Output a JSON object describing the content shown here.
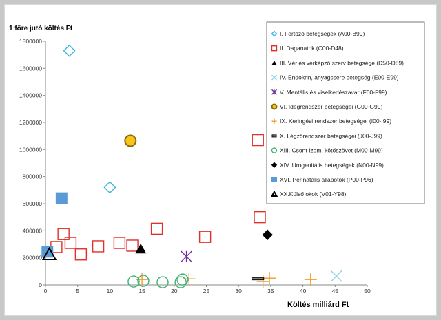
{
  "chart_data": {
    "type": "scatter",
    "ylabel": "1 főre jutó költés Ft",
    "xlabel": "Költés milliárd Ft",
    "xlim": [
      0,
      50
    ],
    "ylim": [
      0,
      1800000
    ],
    "xticks": [
      0,
      5,
      10,
      15,
      20,
      25,
      30,
      35,
      40,
      45,
      50
    ],
    "yticks": [
      0,
      200000,
      400000,
      600000,
      800000,
      1000000,
      1200000,
      1400000,
      1600000,
      1800000
    ],
    "grid": false,
    "legend_position": "top-right",
    "series": [
      {
        "name": "I. Fertőző betegségek (A00-B99)",
        "marker": "diamond-open",
        "color": "#3fb5e0",
        "points": [
          [
            3.7,
            1730000
          ],
          [
            10,
            720000
          ]
        ]
      },
      {
        "name": "II. Daganatok (C00-D48)",
        "marker": "square-open",
        "color": "#e0302a",
        "points": [
          [
            33,
            1070000
          ],
          [
            2.8,
            375000
          ],
          [
            3.9,
            310000
          ],
          [
            1.7,
            280000
          ],
          [
            5.5,
            225000
          ],
          [
            8.2,
            285000
          ],
          [
            11.5,
            310000
          ],
          [
            13.5,
            290000
          ],
          [
            17.3,
            415000
          ],
          [
            24.8,
            355000
          ],
          [
            33.3,
            500000
          ]
        ]
      },
      {
        "name": "III. Vér és vérképző szerv betegsége (D50-D89)",
        "marker": "triangle-filled",
        "color": "#000000",
        "points": [
          [
            14.8,
            265000
          ]
        ]
      },
      {
        "name": "IV. Endokrin, anyagcsere betegség (E00-E99)",
        "marker": "x",
        "color": "#8fd4e6",
        "points": [
          [
            45.2,
            65000
          ]
        ]
      },
      {
        "name": "V. Mentális és viselkedészavar (F00-F99)",
        "marker": "star",
        "color": "#7030a0",
        "points": [
          [
            21.9,
            210000
          ]
        ]
      },
      {
        "name": "VI. Idegrendszer betegségei (G00-G99)",
        "marker": "circle-filled",
        "color": "#f5c518",
        "points": [
          [
            13.2,
            1065000
          ]
        ]
      },
      {
        "name": "IX. Keringési rendszer betegségei (I00-I99)",
        "marker": "plus",
        "color": "#f39a2e",
        "points": [
          [
            15,
            40000
          ],
          [
            22.3,
            45000
          ],
          [
            33.8,
            25000
          ],
          [
            34.8,
            50000
          ],
          [
            41.2,
            40000
          ]
        ]
      },
      {
        "name": "X. Légzőrendszer betegségei (J00-J99)",
        "marker": "dash",
        "color": "#000000",
        "points": [
          [
            33,
            45000
          ]
        ]
      },
      {
        "name": "XIII. Csont-izom, kötőszövet  (M00-M99)",
        "marker": "circle-open",
        "color": "#3cb371",
        "points": [
          [
            13.7,
            25000
          ],
          [
            15.2,
            30000
          ],
          [
            18.2,
            20000
          ],
          [
            21,
            20000
          ],
          [
            21.3,
            40000
          ]
        ]
      },
      {
        "name": "XIV. Urogenitális betegségek (N00-N99)",
        "marker": "diamond-filled",
        "color": "#000000",
        "points": [
          [
            34.5,
            370000
          ]
        ]
      },
      {
        "name": "XVI. Perinatális állapotok (P00-P96)",
        "marker": "square-filled",
        "color": "#5b9bd5",
        "points": [
          [
            2.5,
            640000
          ],
          [
            0.3,
            245000
          ]
        ]
      },
      {
        "name": "XX.Külső okok (V01-Y98)",
        "marker": "triangle-open",
        "color": "#000000",
        "points": [
          [
            0.6,
            225000
          ]
        ]
      }
    ]
  }
}
